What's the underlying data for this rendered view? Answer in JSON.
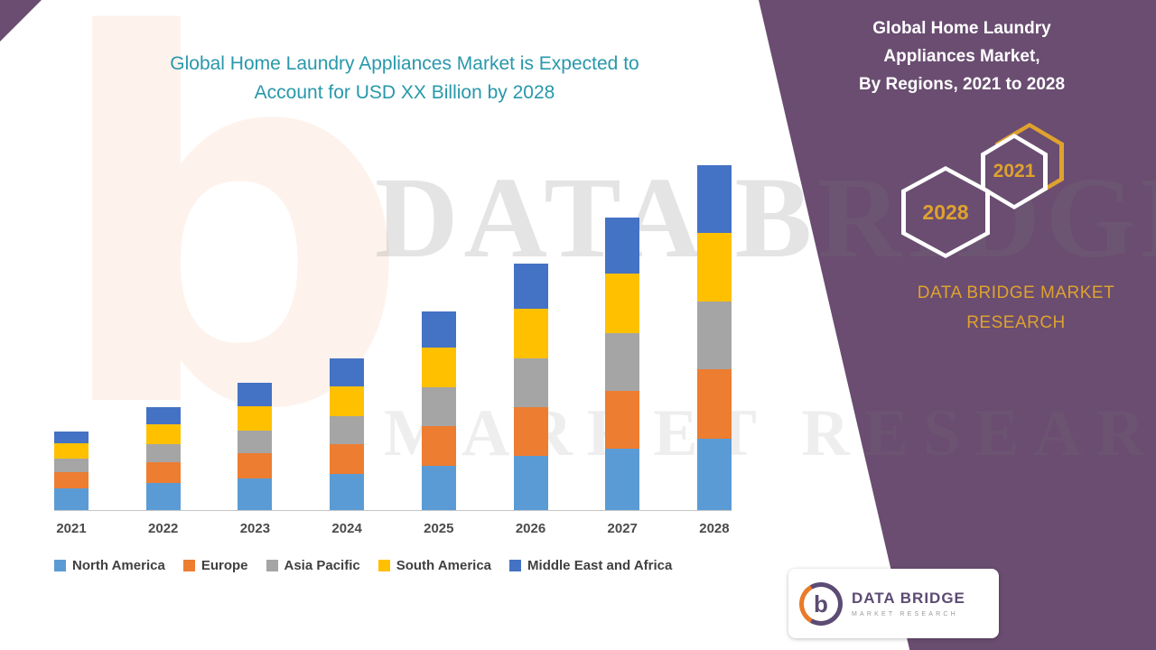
{
  "left": {
    "title_line1": "Global Home Laundry Appliances Market is Expected to",
    "title_line2": "Account for USD XX Billion by 2028"
  },
  "panel": {
    "title_line1": "Global Home Laundry",
    "title_line2": "Appliances Market,",
    "title_line3": "By Regions,  2021 to 2028",
    "hex_front_year": "2021",
    "hex_back_year": "2028",
    "brand_line1": "DATA BRIDGE MARKET",
    "brand_line2": "RESEARCH",
    "bg_color": "#6A4D71",
    "accent_gold": "#DFA22E"
  },
  "watermark": {
    "line1": "DATA BRIDGE",
    "line2": "MARKET RESEARCH",
    "logo_letter": "b"
  },
  "logo_box": {
    "letter": "b",
    "brand_top": "DATA BRIDGE",
    "brand_bottom": "MARKET RESEARCH"
  },
  "chart_data": {
    "type": "bar",
    "stacked": true,
    "title": "Global Home Laundry Appliances Market, By Regions, 2021 to 2028",
    "xlabel": "",
    "ylabel": "",
    "y_axis_visible": false,
    "grid": false,
    "legend_position": "bottom",
    "categories": [
      "2021",
      "2022",
      "2023",
      "2024",
      "2025",
      "2026",
      "2027",
      "2028"
    ],
    "series": [
      {
        "name": "North America",
        "color": "#5B9BD5",
        "values": [
          24,
          30,
          35,
          40,
          49,
          60,
          68,
          79
        ]
      },
      {
        "name": "Europe",
        "color": "#ED7D31",
        "values": [
          18,
          23,
          28,
          33,
          44,
          54,
          64,
          77
        ]
      },
      {
        "name": "Asia Pacific",
        "color": "#A5A5A5",
        "values": [
          15,
          20,
          25,
          31,
          43,
          54,
          64,
          75
        ]
      },
      {
        "name": "South America",
        "color": "#FFC000",
        "values": [
          17,
          22,
          27,
          33,
          44,
          55,
          66,
          76
        ]
      },
      {
        "name": "Middle East and Africa",
        "color": "#4472C4",
        "values": [
          13,
          19,
          26,
          31,
          40,
          50,
          62,
          75
        ]
      }
    ],
    "ylim": [
      0,
      400
    ],
    "value_note": "relative units estimated from bar heights; y-axis unlabeled (USD XX Billion)"
  }
}
